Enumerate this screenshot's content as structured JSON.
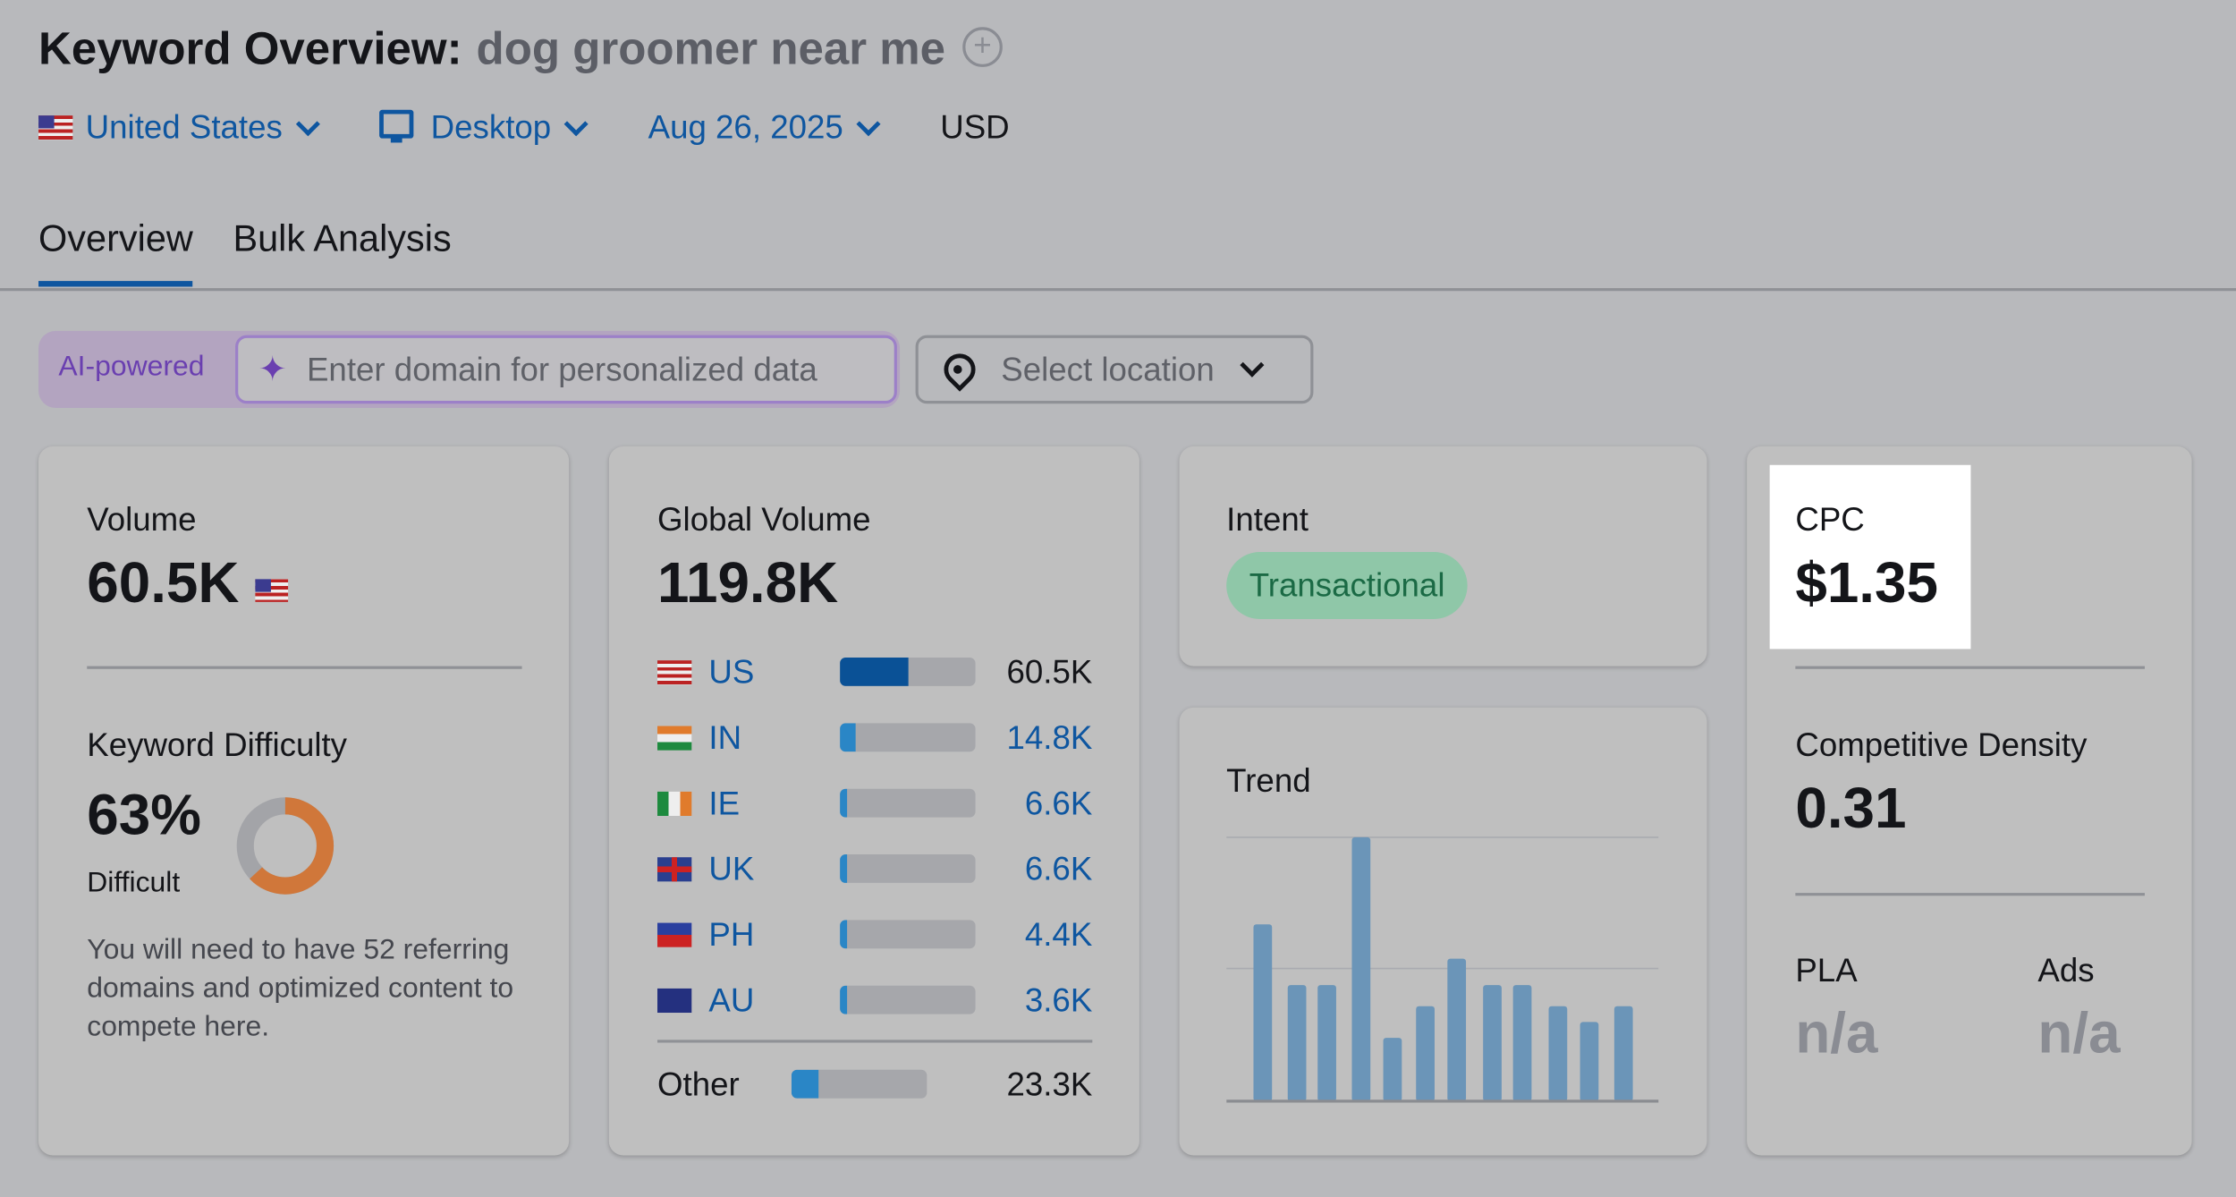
{
  "header": {
    "title": "Keyword Overview:",
    "keyword": "dog groomer near me",
    "add_icon": "plus-circle-icon"
  },
  "filters": {
    "country": "United States",
    "device": "Desktop",
    "date": "Aug 26, 2025",
    "currency": "USD"
  },
  "tabs": [
    {
      "label": "Overview",
      "active": true
    },
    {
      "label": "Bulk Analysis",
      "active": false
    }
  ],
  "personalize": {
    "badge": "AI-powered",
    "placeholder": "Enter domain for personalized data",
    "location_placeholder": "Select location"
  },
  "volume": {
    "label": "Volume",
    "value": "60.5K"
  },
  "difficulty": {
    "label": "Keyword Difficulty",
    "value": "63%",
    "percent": 63,
    "level": "Difficult",
    "description": "You will need to have 52 referring domains and optimized content to compete here.",
    "color": "#d0773a"
  },
  "global_volume": {
    "label": "Global Volume",
    "value": "119.8K",
    "rows": [
      {
        "code": "US",
        "value": "60.5K",
        "share": 0.505
      },
      {
        "code": "IN",
        "value": "14.8K",
        "share": 0.12
      },
      {
        "code": "IE",
        "value": "6.6K",
        "share": 0.05
      },
      {
        "code": "UK",
        "value": "6.6K",
        "share": 0.05
      },
      {
        "code": "PH",
        "value": "4.4K",
        "share": 0.05
      },
      {
        "code": "AU",
        "value": "3.6K",
        "share": 0.05
      }
    ],
    "other": {
      "label": "Other",
      "value": "23.3K",
      "share": 0.2
    }
  },
  "intent": {
    "label": "Intent",
    "value": "Transactional",
    "color": "#8fc7a8"
  },
  "trend": {
    "label": "Trend",
    "relative_values": [
      0.67,
      0.44,
      0.44,
      1.0,
      0.24,
      0.36,
      0.54,
      0.44,
      0.44,
      0.36,
      0.3,
      0.36
    ],
    "bar_color": "#6b95b8"
  },
  "cpc": {
    "label": "CPC",
    "value": "$1.35"
  },
  "competitive_density": {
    "label": "Competitive Density",
    "value": "0.31"
  },
  "pla": {
    "label": "PLA",
    "value": "n/a"
  },
  "ads": {
    "label": "Ads",
    "value": "n/a"
  }
}
